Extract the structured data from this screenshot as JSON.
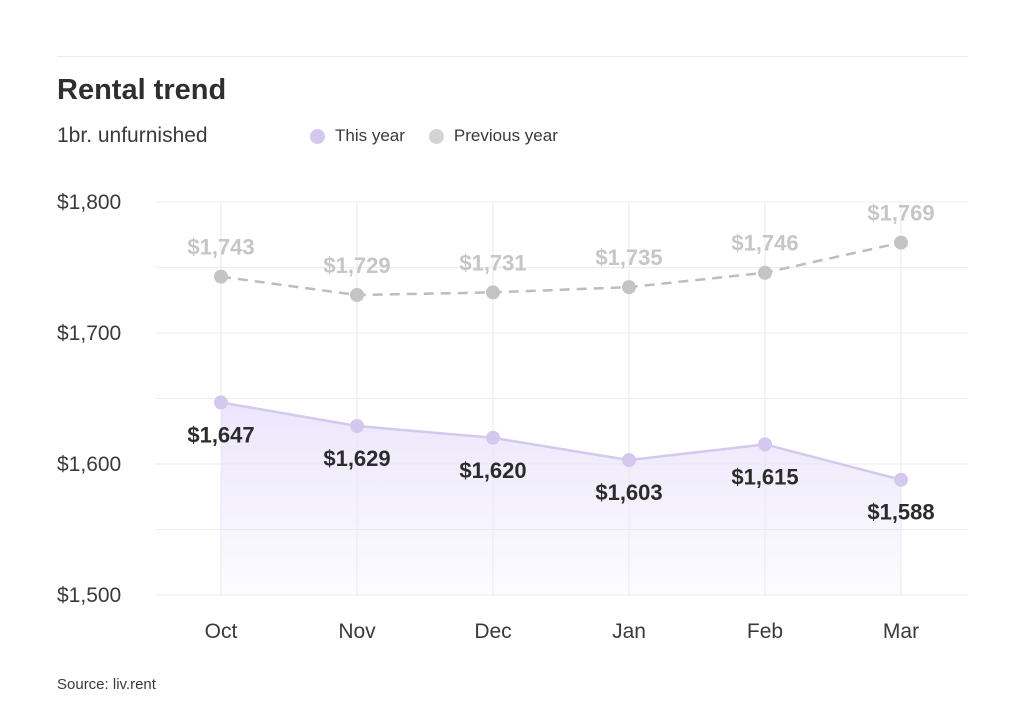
{
  "header": {
    "title": "Rental trend",
    "subtitle": "1br. unfurnished"
  },
  "legend": [
    {
      "label": "This year",
      "color": "#d4c8ee"
    },
    {
      "label": "Previous year",
      "color": "#d3d3d3"
    }
  ],
  "footer": {
    "source": "Source: liv.rent"
  },
  "colors": {
    "current_line": "#d4c8ee",
    "current_fill_top": "#e9e3fb",
    "previous_line": "#bdbdbd",
    "previous_dot": "#c4c4c4",
    "grid": "#ececec"
  },
  "chart_data": {
    "type": "line",
    "title": "Rental trend",
    "subtitle": "1br. unfurnished",
    "categories": [
      "Oct",
      "Nov",
      "Dec",
      "Jan",
      "Feb",
      "Mar"
    ],
    "series": [
      {
        "name": "This year",
        "values": [
          1647,
          1629,
          1620,
          1603,
          1615,
          1588
        ],
        "labels": [
          "$1,647",
          "$1,629",
          "$1,620",
          "$1,603",
          "$1,615",
          "$1,588"
        ],
        "style": "solid-area"
      },
      {
        "name": "Previous year",
        "values": [
          1743,
          1729,
          1731,
          1735,
          1746,
          1769
        ],
        "labels": [
          "$1,743",
          "$1,729",
          "$1,731",
          "$1,735",
          "$1,746",
          "$1,769"
        ],
        "style": "dashed"
      }
    ],
    "ylim": [
      1500,
      1800
    ],
    "yticks": [
      1500,
      1600,
      1700,
      1800
    ],
    "ytick_labels": [
      "$1,500",
      "$1,600",
      "$1,700",
      "$1,800"
    ],
    "grid": true,
    "legend_position": "top-center"
  }
}
